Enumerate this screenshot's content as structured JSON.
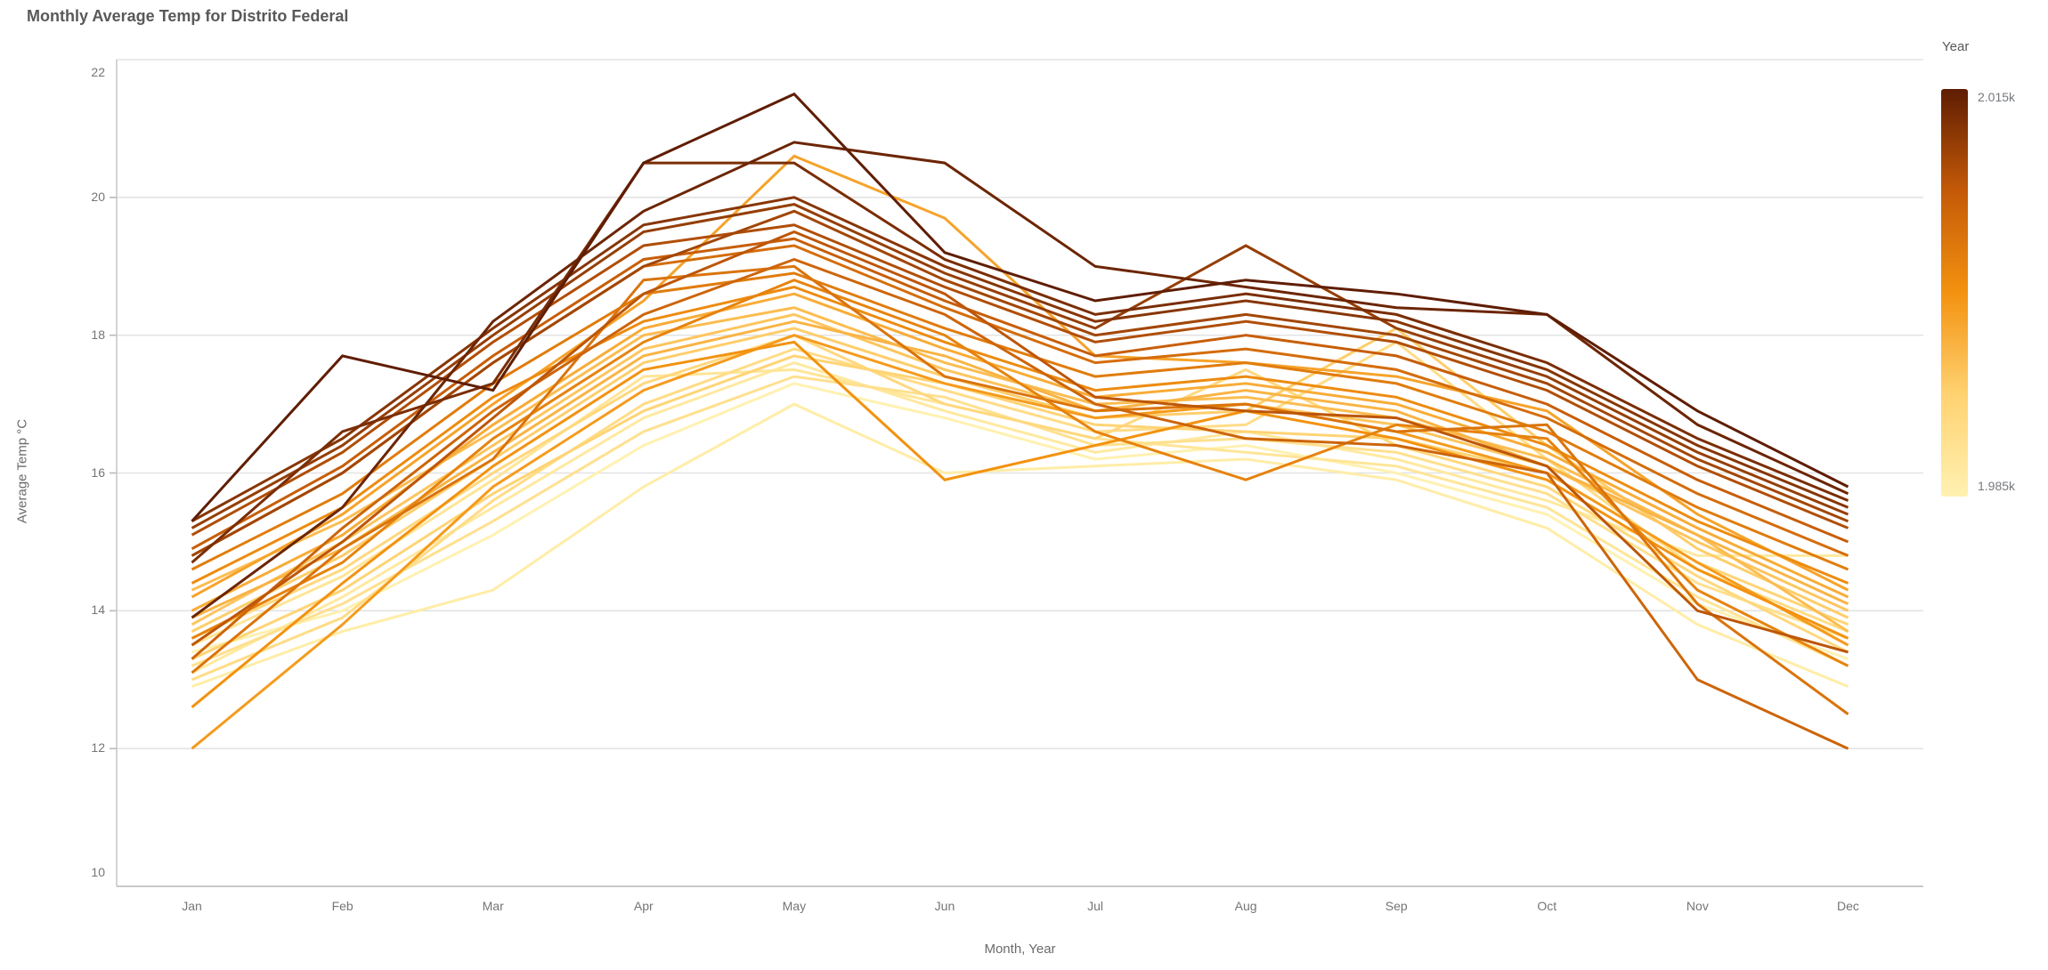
{
  "page": {
    "title": "Monthly Average Temp for Distrito Federal"
  },
  "chart_data": {
    "type": "line",
    "title": "Monthly Average Temp for Distrito Federal",
    "xlabel": "Month, Year",
    "ylabel": "Average Temp °C",
    "x": [
      "Jan",
      "Feb",
      "Mar",
      "Apr",
      "May",
      "Jun",
      "Jul",
      "Aug",
      "Sep",
      "Oct",
      "Nov",
      "Dec"
    ],
    "yticks": [
      10,
      12,
      14,
      16,
      18,
      20,
      22
    ],
    "ylim": [
      10,
      22
    ],
    "grid": true,
    "legend": {
      "title": "Year",
      "max_label": "2.015k",
      "min_label": "1.985k",
      "position": "right",
      "kind": "continuous-gradient"
    },
    "color_scale": {
      "min_year": 1985,
      "max_year": 2015,
      "stops": [
        "#fff1b1",
        "#ffd271",
        "#f39210",
        "#c45a08",
        "#5f1d03"
      ]
    },
    "axis_colors": {
      "grid": "#e3e3e3",
      "axis": "#c9c9c9",
      "tick": "#b9b9b9"
    },
    "series": [
      {
        "name": "1985",
        "values": [
          13.4,
          14.0,
          15.1,
          16.4,
          17.3,
          16.8,
          16.2,
          16.4,
          16.0,
          15.4,
          14.1,
          13.3
        ]
      },
      {
        "name": "1986",
        "values": [
          12.9,
          13.7,
          14.3,
          15.8,
          17.0,
          16.0,
          16.1,
          16.2,
          15.9,
          15.2,
          13.8,
          12.9
        ]
      },
      {
        "name": "1987",
        "values": [
          13.1,
          14.2,
          15.5,
          16.8,
          17.6,
          16.9,
          16.3,
          16.6,
          16.2,
          15.6,
          14.8,
          14.8
        ]
      },
      {
        "name": "1988",
        "values": [
          13.5,
          14.5,
          15.9,
          17.4,
          17.5,
          17.0,
          16.5,
          16.3,
          16.1,
          15.5,
          14.2,
          13.2
        ]
      },
      {
        "name": "1989",
        "values": [
          13.2,
          14.1,
          15.3,
          16.6,
          17.4,
          17.1,
          16.4,
          16.5,
          16.3,
          15.7,
          14.4,
          13.6
        ]
      },
      {
        "name": "1990",
        "values": [
          13.0,
          13.9,
          15.6,
          17.0,
          17.8,
          17.2,
          16.6,
          16.7,
          17.9,
          16.2,
          14.6,
          13.7
        ]
      },
      {
        "name": "1991",
        "values": [
          13.6,
          14.6,
          16.0,
          17.3,
          18.0,
          17.0,
          16.5,
          17.5,
          16.4,
          15.8,
          14.5,
          13.4
        ]
      },
      {
        "name": "1992",
        "values": [
          13.3,
          14.3,
          15.7,
          16.9,
          17.7,
          17.3,
          16.7,
          16.6,
          16.5,
          16.0,
          14.7,
          13.8
        ]
      },
      {
        "name": "1993",
        "values": [
          13.7,
          14.8,
          16.2,
          17.6,
          18.1,
          17.4,
          16.8,
          16.9,
          18.1,
          16.4,
          14.9,
          13.9
        ]
      },
      {
        "name": "1994",
        "values": [
          13.8,
          15.0,
          16.4,
          17.8,
          18.3,
          17.5,
          16.9,
          17.0,
          16.7,
          16.1,
          15.0,
          14.0
        ]
      },
      {
        "name": "1995",
        "values": [
          14.3,
          15.3,
          16.6,
          18.0,
          18.4,
          17.6,
          17.0,
          17.1,
          16.8,
          16.2,
          15.1,
          13.7
        ]
      },
      {
        "name": "1996",
        "values": [
          13.9,
          14.9,
          16.3,
          17.7,
          18.2,
          17.7,
          16.9,
          17.2,
          16.9,
          16.1,
          15.1,
          14.1
        ]
      },
      {
        "name": "1997",
        "values": [
          14.0,
          15.1,
          16.7,
          18.1,
          18.6,
          17.8,
          17.1,
          17.3,
          17.0,
          16.3,
          15.2,
          14.2
        ]
      },
      {
        "name": "1998",
        "values": [
          14.2,
          15.4,
          17.0,
          18.5,
          20.6,
          19.7,
          17.7,
          17.6,
          17.4,
          16.9,
          15.4,
          14.3
        ]
      },
      {
        "name": "1999",
        "values": [
          12.0,
          13.8,
          15.8,
          17.2,
          18.0,
          17.3,
          16.8,
          17.0,
          16.6,
          16.0,
          14.7,
          13.5
        ]
      },
      {
        "name": "2000",
        "values": [
          12.6,
          14.4,
          16.1,
          17.5,
          17.9,
          15.9,
          16.4,
          16.9,
          16.5,
          15.9,
          14.6,
          13.6
        ]
      },
      {
        "name": "2001",
        "values": [
          14.4,
          15.5,
          17.1,
          18.2,
          18.7,
          17.9,
          17.2,
          17.4,
          17.1,
          16.4,
          15.3,
          14.4
        ]
      },
      {
        "name": "2002",
        "values": [
          13.6,
          14.7,
          16.5,
          17.9,
          18.8,
          18.0,
          16.6,
          15.9,
          16.7,
          16.5,
          14.3,
          13.2
        ]
      },
      {
        "name": "2003",
        "values": [
          14.6,
          15.7,
          17.3,
          18.6,
          18.9,
          18.1,
          17.4,
          17.6,
          17.3,
          16.6,
          15.5,
          14.6
        ]
      },
      {
        "name": "2004",
        "values": [
          13.1,
          14.9,
          16.2,
          18.8,
          19.0,
          17.4,
          16.9,
          17.0,
          16.6,
          16.7,
          14.1,
          12.5
        ]
      },
      {
        "name": "2005",
        "values": [
          14.8,
          16.0,
          17.6,
          19.0,
          19.3,
          18.4,
          17.6,
          17.8,
          17.5,
          16.8,
          15.7,
          14.8
        ]
      },
      {
        "name": "2006",
        "values": [
          13.3,
          15.2,
          16.9,
          18.3,
          19.1,
          18.3,
          17.0,
          16.5,
          16.4,
          16.0,
          13.0,
          12.0
        ]
      },
      {
        "name": "2007",
        "values": [
          14.9,
          16.1,
          17.7,
          19.1,
          19.4,
          18.5,
          17.7,
          18.0,
          17.7,
          17.0,
          15.9,
          15.0
        ]
      },
      {
        "name": "2008",
        "values": [
          13.5,
          15.0,
          16.8,
          18.6,
          19.5,
          18.6,
          17.1,
          16.9,
          16.8,
          16.1,
          14.0,
          13.4
        ]
      },
      {
        "name": "2009",
        "values": [
          15.1,
          16.3,
          17.9,
          19.3,
          19.6,
          18.7,
          17.9,
          18.2,
          17.9,
          17.2,
          16.1,
          15.2
        ]
      },
      {
        "name": "2010",
        "values": [
          14.8,
          16.0,
          17.6,
          19.0,
          19.8,
          18.8,
          18.0,
          18.3,
          18.0,
          17.3,
          16.2,
          15.3
        ]
      },
      {
        "name": "2011",
        "values": [
          15.2,
          16.4,
          18.0,
          19.5,
          19.9,
          18.9,
          18.1,
          19.3,
          18.1,
          17.4,
          16.3,
          15.4
        ]
      },
      {
        "name": "2012",
        "values": [
          15.3,
          16.5,
          18.1,
          19.6,
          20.0,
          19.0,
          18.2,
          18.5,
          18.2,
          17.5,
          16.4,
          15.5
        ]
      },
      {
        "name": "2013",
        "values": [
          14.7,
          16.6,
          17.3,
          20.5,
          20.5,
          19.1,
          18.3,
          18.6,
          18.3,
          17.6,
          16.5,
          15.6
        ]
      },
      {
        "name": "2014",
        "values": [
          13.9,
          15.5,
          18.2,
          19.8,
          20.8,
          20.5,
          19.0,
          18.7,
          18.4,
          18.3,
          16.7,
          15.7
        ]
      },
      {
        "name": "2015",
        "values": [
          15.3,
          17.7,
          17.2,
          20.5,
          21.5,
          19.2,
          18.5,
          18.8,
          18.6,
          18.3,
          16.9,
          15.8
        ]
      }
    ]
  }
}
